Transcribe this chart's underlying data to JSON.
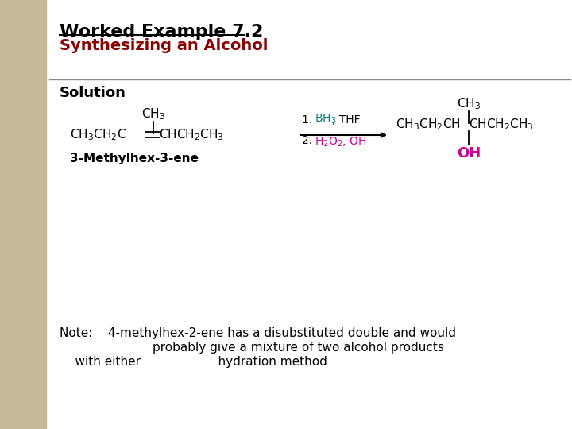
{
  "title": "Worked Example 7.2",
  "subtitle": "Synthesizing an Alcohol",
  "section": "Solution",
  "bg_left_color": "#c8b89a",
  "bg_main_color": "#ffffff",
  "title_color": "#000000",
  "subtitle_color": "#8b0000",
  "section_color": "#000000",
  "note_line1": "Note:    4-methylhex-2-ene has a disubstituted double and would",
  "note_line2": "                        probably give a mixture of two alcohol products",
  "note_line3": "    with either                    hydration method",
  "reactant_label": "3-Methylhex-3-ene",
  "reagent1_color": "#008080",
  "reagent2_color": "#cc0099",
  "oh_color": "#cc0099"
}
